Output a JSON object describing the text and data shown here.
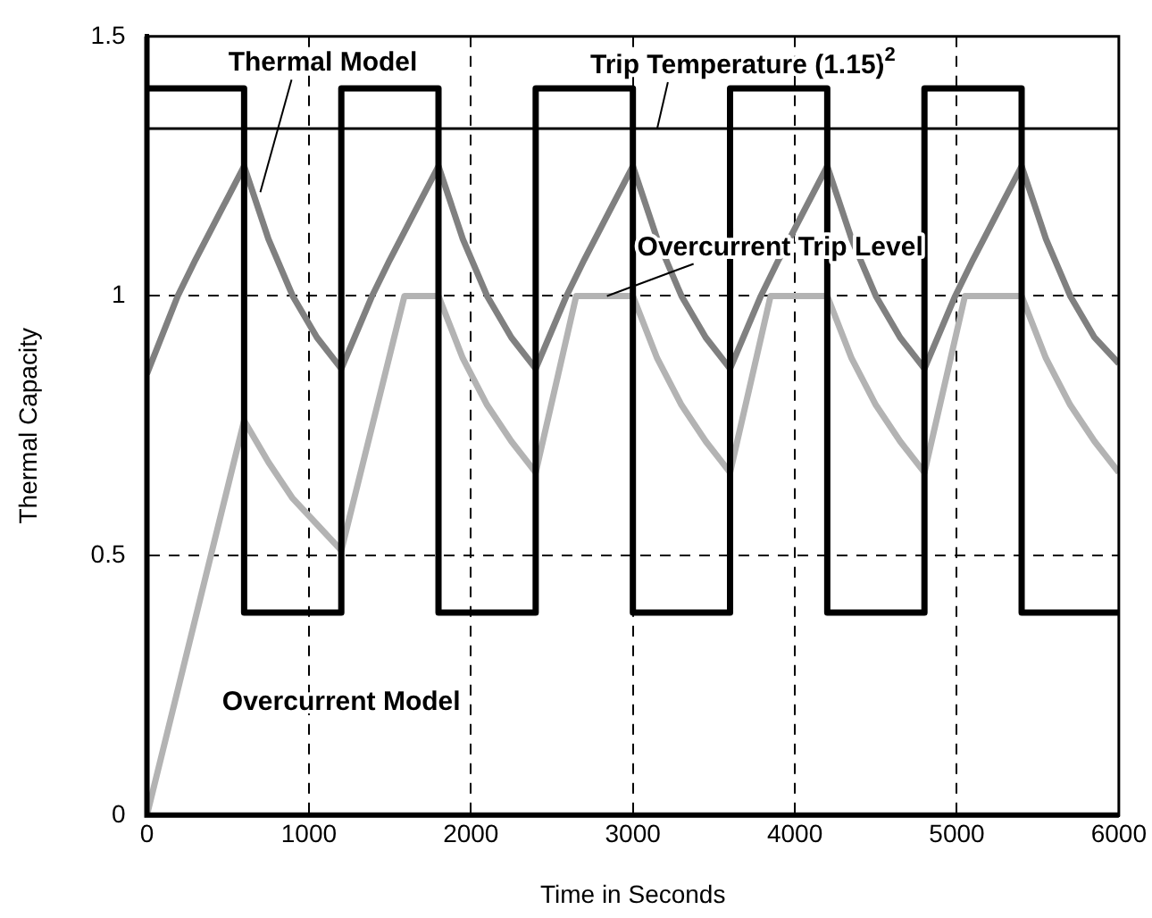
{
  "chart_data": {
    "type": "line",
    "xlabel": "Time in Seconds",
    "ylabel": "Thermal Capacity",
    "xlim": [
      0,
      6000
    ],
    "xticks": [
      0,
      1000,
      2000,
      3000,
      4000,
      5000,
      6000
    ],
    "ylim": [
      0,
      1.5
    ],
    "yticks": [
      0,
      0.5,
      1,
      1.5
    ],
    "grid": true,
    "legend": false,
    "marker": "none",
    "line_style": "solid",
    "series": [
      {
        "color": "#000000",
        "x": [
          0,
          600,
          600,
          1200,
          1200,
          1800,
          1800,
          2400,
          2400,
          3000,
          3000,
          3600,
          3600,
          4200,
          4200,
          4800,
          4800,
          5400,
          5400,
          6000
        ],
        "values": [
          1.4,
          1.4,
          0.39,
          0.39,
          1.4,
          1.4,
          0.39,
          0.39,
          1.4,
          1.4,
          0.39,
          0.39,
          1.4,
          1.4,
          0.39,
          0.39,
          1.4,
          1.4,
          0.39,
          0.39
        ]
      },
      {
        "color": "#808080",
        "x": [
          0,
          190,
          300,
          450,
          600,
          750,
          900,
          1050,
          1200,
          1390,
          1500,
          1650,
          1800,
          1950,
          2100,
          2250,
          2400,
          2590,
          2700,
          2850,
          3000,
          3150,
          3300,
          3450,
          3600,
          3790,
          3900,
          4050,
          4200,
          4350,
          4500,
          4650,
          4800,
          4990,
          5100,
          5250,
          5400,
          5550,
          5700,
          5850,
          6000
        ],
        "values": [
          0.85,
          1.0,
          1.07,
          1.16,
          1.25,
          1.11,
          1.0,
          0.92,
          0.86,
          1.0,
          1.07,
          1.16,
          1.25,
          1.11,
          1.0,
          0.92,
          0.86,
          1.0,
          1.07,
          1.16,
          1.25,
          1.11,
          1.0,
          0.92,
          0.86,
          1.0,
          1.07,
          1.16,
          1.25,
          1.11,
          1.0,
          0.92,
          0.86,
          1.0,
          1.07,
          1.16,
          1.25,
          1.11,
          1.0,
          0.92,
          0.87
        ]
      },
      {
        "color": "#b3b3b3",
        "x": [
          0,
          600,
          750,
          900,
          1050,
          1200,
          1590,
          1800,
          1950,
          2100,
          2250,
          2400,
          2650,
          3000,
          3150,
          3300,
          3450,
          3600,
          3850,
          4200,
          4350,
          4500,
          4650,
          4800,
          5050,
          5400,
          5550,
          5700,
          5850,
          6000
        ],
        "values": [
          0,
          0.76,
          0.68,
          0.61,
          0.56,
          0.51,
          1.0,
          1.0,
          0.88,
          0.79,
          0.72,
          0.66,
          1.0,
          1.0,
          0.88,
          0.79,
          0.72,
          0.66,
          1.0,
          1.0,
          0.88,
          0.79,
          0.72,
          0.66,
          1.0,
          1.0,
          0.88,
          0.79,
          0.72,
          0.66
        ]
      }
    ],
    "ref_lines": [
      {
        "axis": "y",
        "value": 1.3225,
        "label": "Trip Temperature (1.15)$^{2}$",
        "color": "#000000",
        "line_style": "solid"
      }
    ],
    "annotations": [
      {
        "text": "Thermal Model",
        "x": 700,
        "y": 1.2
      },
      {
        "text": "Overcurrent Trip Level",
        "x": 2840,
        "y": 1.0
      },
      "Overcurrent Model"
    ]
  }
}
